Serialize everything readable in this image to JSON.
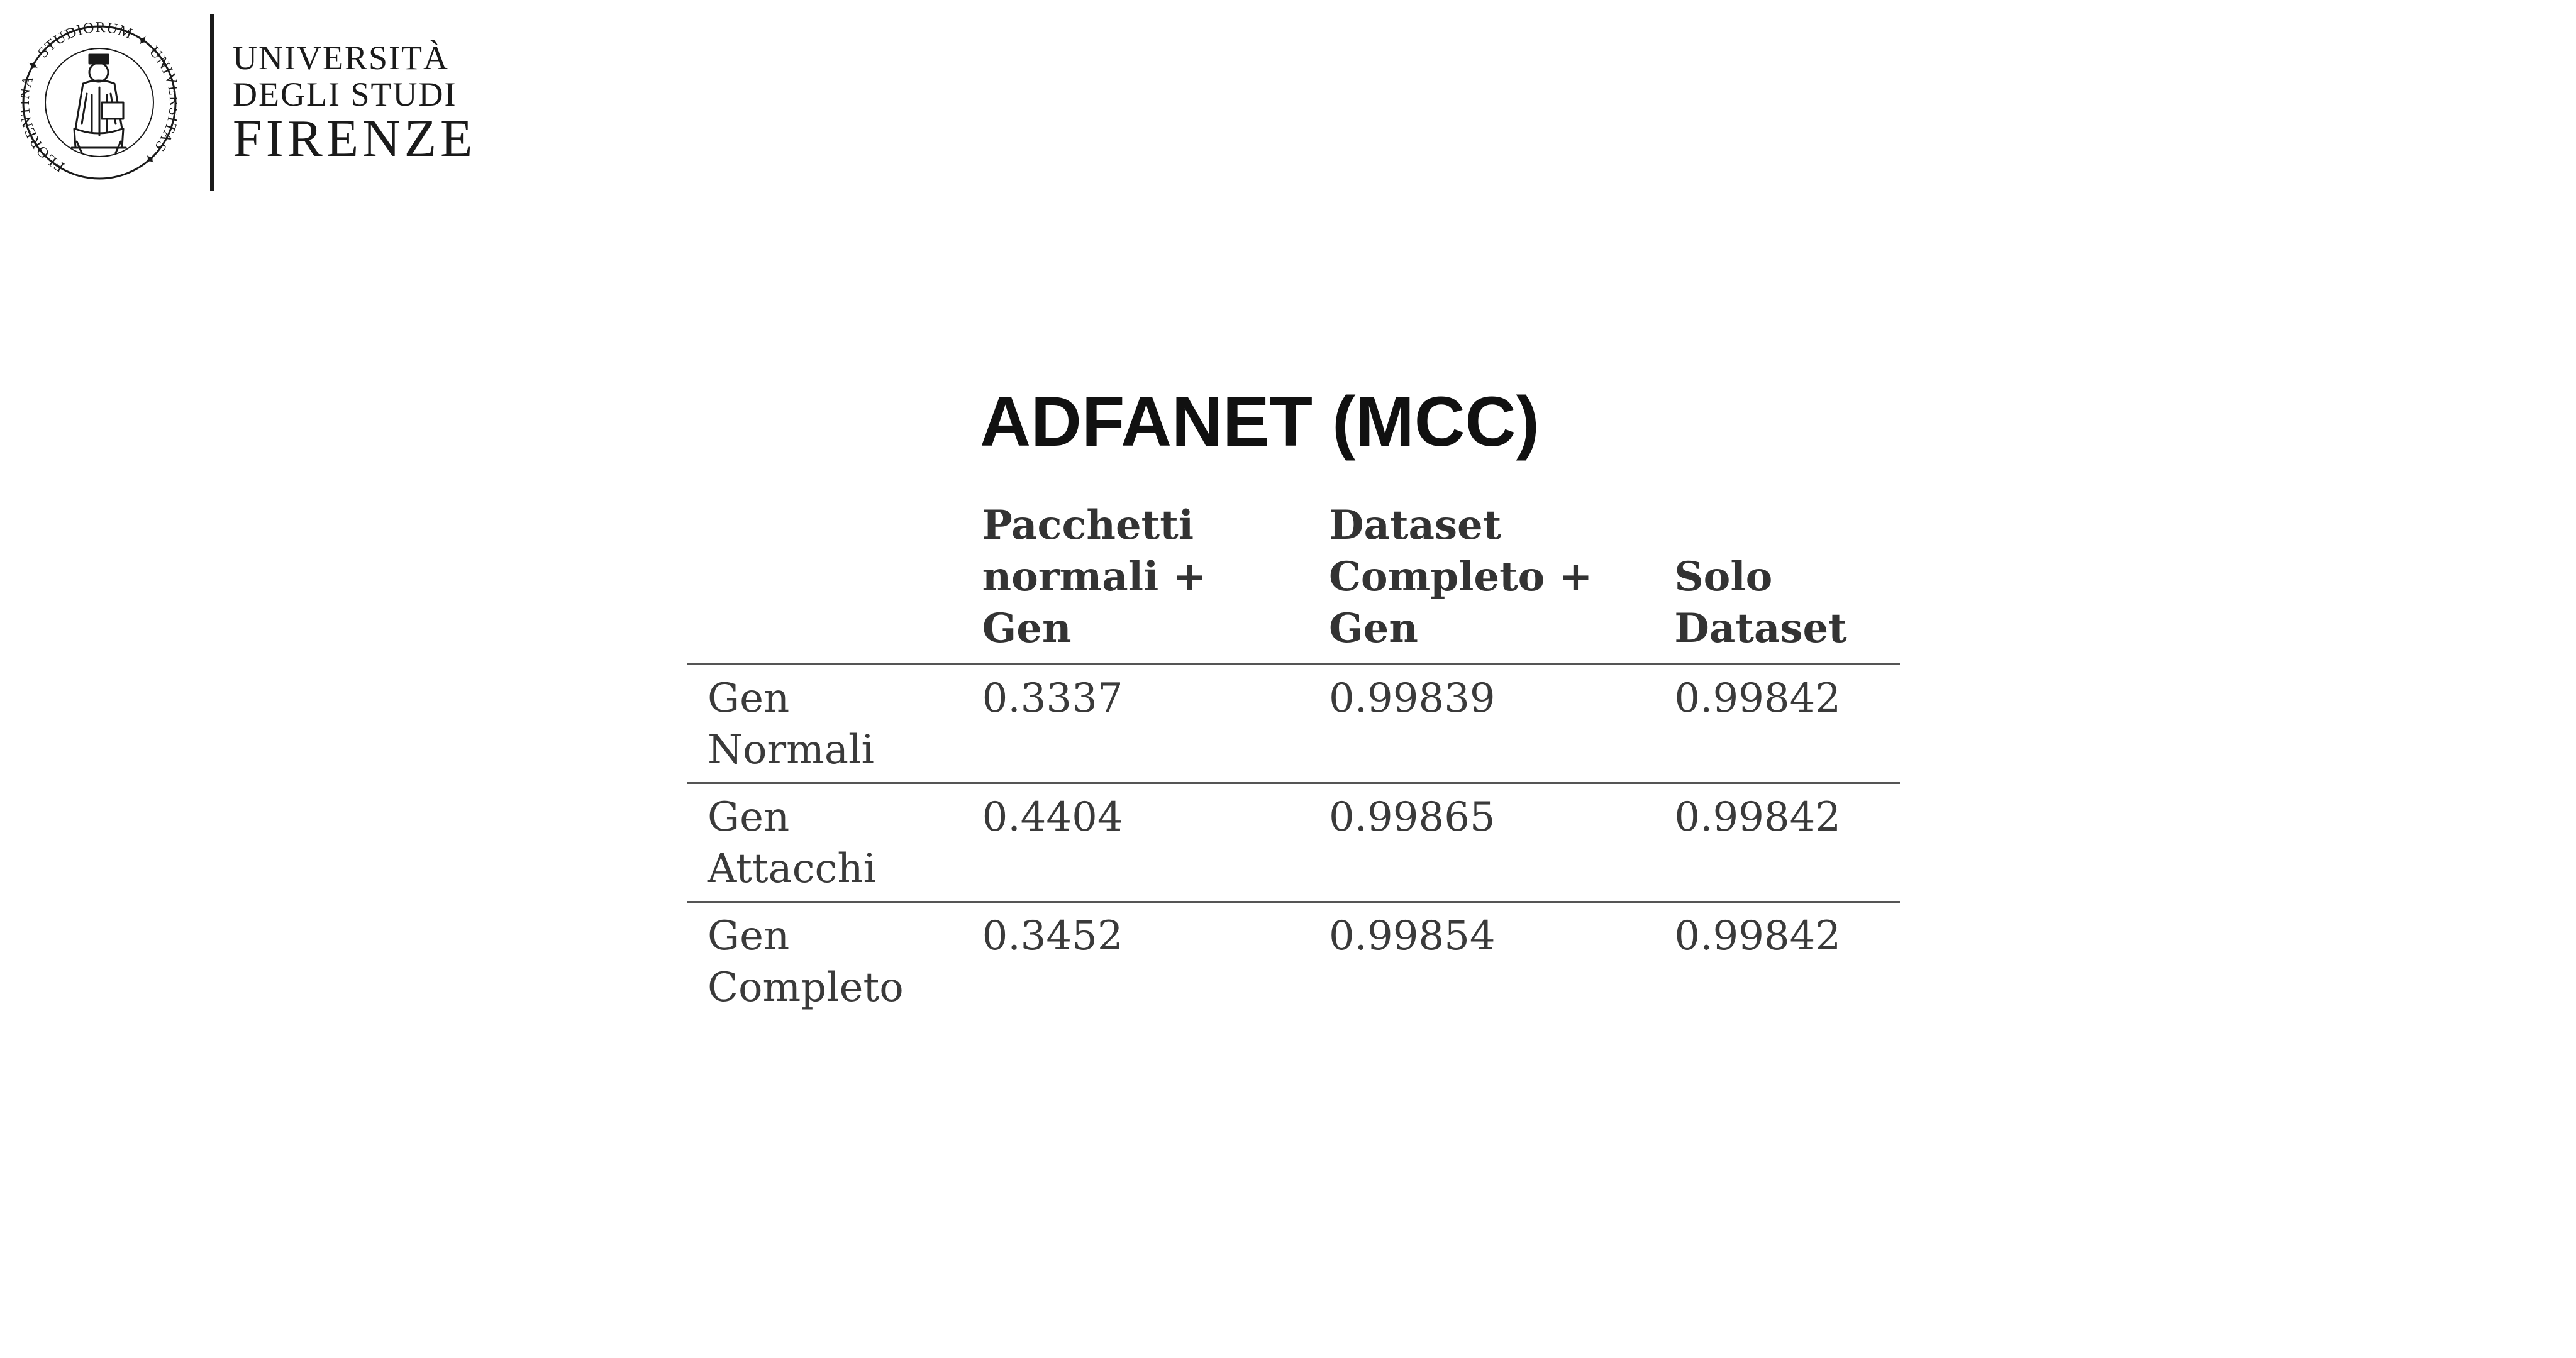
{
  "logo": {
    "seal_text": "FLORENTINA STUDIORUM UNIVERSITAS",
    "name_line1": "UNIVERSITÀ",
    "name_line2": "DEGLI STUDI",
    "name_line3": "FIRENZE"
  },
  "title": "ADFANET (MCC)",
  "table": {
    "headers": [
      "",
      "Pacchetti normali + Gen",
      "Dataset Completo + Gen",
      "Solo Dataset"
    ],
    "rows": [
      {
        "label": "Gen Normali",
        "values": [
          "0.3337",
          "0.99839",
          "0.99842"
        ]
      },
      {
        "label": "Gen Attacchi",
        "values": [
          "0.4404",
          "0.99865",
          "0.99842"
        ]
      },
      {
        "label": "Gen Completo",
        "values": [
          "0.3452",
          "0.99854",
          "0.99842"
        ]
      }
    ]
  }
}
